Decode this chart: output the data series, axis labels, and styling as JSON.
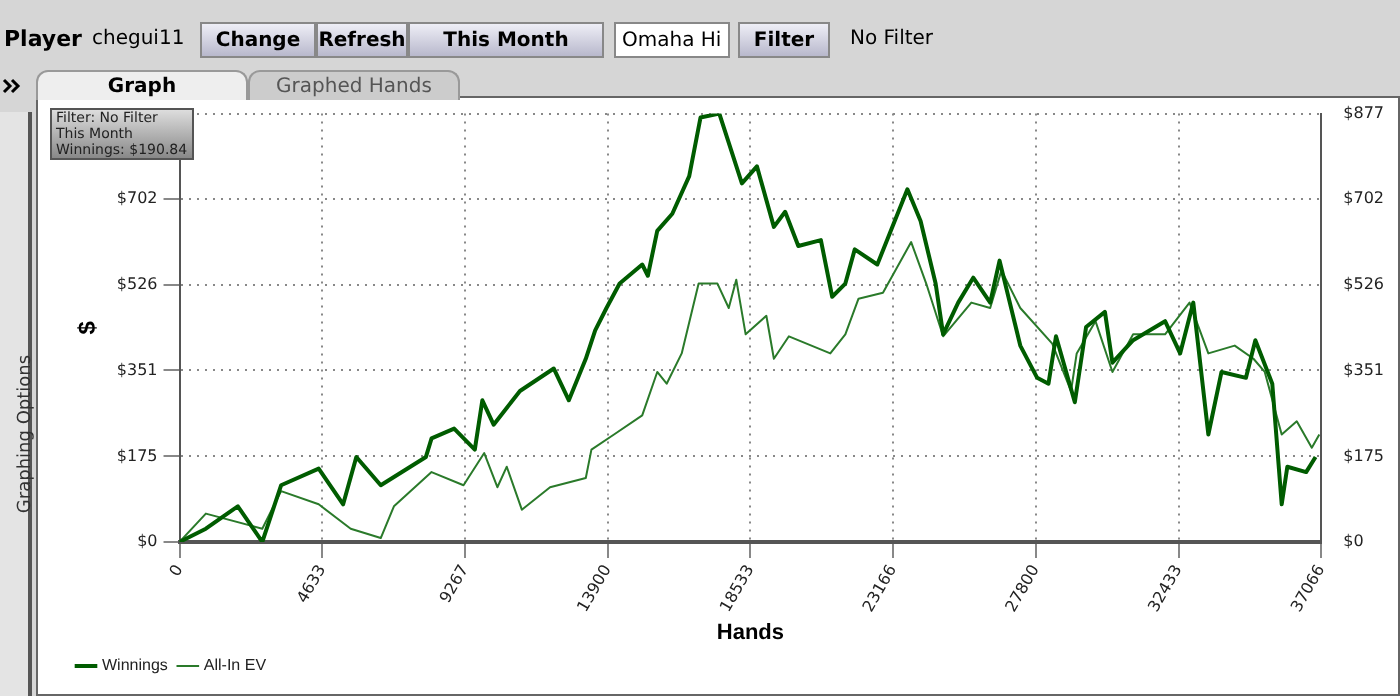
{
  "chart_data": {
    "type": "line",
    "xlabel": "Hands",
    "ylabel": "$",
    "annotations": [
      "Filter: No Filter",
      "This Month",
      "Winnings: $190.84",
      "Player",
      "chegui11",
      "Change",
      "Refresh",
      "This Month",
      "Omaha Hi",
      "Filter",
      "No Filter",
      "Graph",
      "Graphed Hands",
      "Graphing Options"
    ],
    "xlim": [
      0,
      37066
    ],
    "xticks": [
      0,
      4633,
      9267,
      13900,
      18533,
      23166,
      27800,
      32433,
      37066
    ],
    "ylim": [
      0,
      877
    ],
    "yticks": [
      {
        "value": 0,
        "label": "$0"
      },
      {
        "value": 175,
        "label": "$175"
      },
      {
        "value": 351,
        "label": "$351"
      },
      {
        "value": 526,
        "label": "$526"
      },
      {
        "value": 702,
        "label": "$702"
      },
      {
        "value": 877,
        "label": null
      }
    ],
    "y2lim": [
      0,
      877
    ],
    "y2ticks": [
      {
        "value": 0,
        "label": "$0"
      },
      {
        "value": 175,
        "label": "$175"
      },
      {
        "value": 351,
        "label": "$351"
      },
      {
        "value": 526,
        "label": "$526"
      },
      {
        "value": 702,
        "label": "$702"
      },
      {
        "value": 877,
        "label": "$877"
      }
    ],
    "grid": true,
    "legend": "bottom left",
    "marker": "none",
    "line_style": "solid",
    "series": [
      {
        "name": "Winnings",
        "color": "#005c00",
        "x": [
          0,
          855,
          1893,
          2687,
          3297,
          4518,
          5312,
          5740,
          6533,
          7999,
          8182,
          8915,
          9586,
          9831,
          10197,
          11052,
          12151,
          12639,
          13189,
          13494,
          13861,
          14288,
          15021,
          15204,
          15509,
          15998,
          16547,
          16913,
          17524,
          18257,
          18745,
          19295,
          19661,
          20089,
          20821,
          21188,
          21615,
          21921,
          22653,
          23630,
          24058,
          24546,
          24790,
          25279,
          25767,
          26317,
          26622,
          27294,
          27843,
          28210,
          28454,
          29065,
          29431,
          30042,
          30286,
          30958,
          31995,
          32484,
          32911,
          33400,
          33827,
          34621,
          34926,
          35475,
          35781,
          35964,
          36575,
          36880
        ],
        "values": [
          0,
          27,
          73,
          0,
          116,
          150,
          77,
          174,
          116,
          174,
          212,
          232,
          189,
          290,
          240,
          309,
          355,
          290,
          375,
          433,
          479,
          529,
          568,
          545,
          637,
          672,
          749,
          869,
          877,
          734,
          769,
          645,
          676,
          606,
          618,
          502,
          529,
          599,
          568,
          722,
          657,
          529,
          425,
          490,
          541,
          490,
          576,
          402,
          336,
          324,
          421,
          286,
          440,
          471,
          367,
          413,
          452,
          386,
          490,
          220,
          348,
          336,
          413,
          324,
          77,
          154,
          143,
          174
        ]
      },
      {
        "name": "All-In EV",
        "color": "#2a7a2a",
        "x": [
          0,
          855,
          2687,
          3297,
          4518,
          5557,
          6533,
          6961,
          8182,
          9220,
          9892,
          10319,
          10624,
          11113,
          12029,
          13189,
          13372,
          14105,
          15021,
          15509,
          15815,
          16303,
          16852,
          17463,
          17830,
          18074,
          18379,
          19051,
          19295,
          19783,
          21127,
          21615,
          22043,
          22836,
          23752,
          24241,
          24790,
          25706,
          26317,
          26683,
          27294,
          28332,
          28942,
          29126,
          29736,
          30286,
          30958,
          31995,
          32789,
          33400,
          34255,
          34865,
          35231,
          35781,
          36270,
          36758,
          37002
        ],
        "values": [
          0,
          58,
          27,
          104,
          77,
          27,
          8,
          73,
          143,
          116,
          182,
          112,
          154,
          66,
          112,
          131,
          189,
          220,
          259,
          348,
          324,
          386,
          529,
          529,
          479,
          537,
          425,
          463,
          375,
          421,
          386,
          425,
          498,
          510,
          614,
          529,
          421,
          490,
          479,
          556,
          479,
          406,
          309,
          386,
          452,
          348,
          425,
          425,
          490,
          386,
          402,
          375,
          348,
          220,
          247,
          193,
          220
        ]
      }
    ]
  }
}
